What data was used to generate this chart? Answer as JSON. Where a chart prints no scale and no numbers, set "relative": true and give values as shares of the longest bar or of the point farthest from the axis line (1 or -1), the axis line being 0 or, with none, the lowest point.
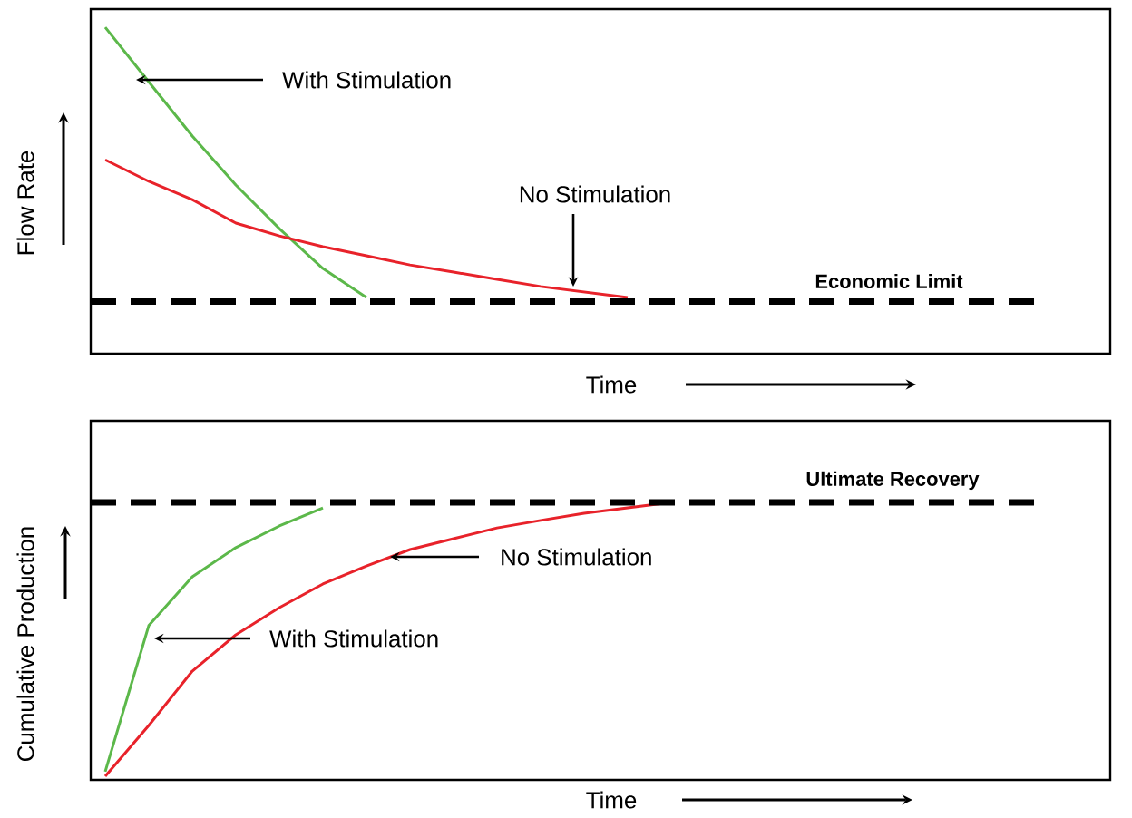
{
  "chart_data": [
    {
      "type": "line",
      "relative": true,
      "xlabel": "Time",
      "ylabel": "Flow Rate",
      "categories": [
        null,
        null,
        null,
        null,
        null,
        null,
        null,
        null,
        null,
        null,
        null,
        null,
        null,
        null,
        null,
        null,
        null,
        null,
        null,
        null,
        null,
        null,
        null
      ],
      "series": [
        {
          "color": "#5cb84a",
          "values": [
            1,
            0.833,
            0.667,
            0.517,
            0.383,
            0.261,
            0.172,
            null,
            null,
            null,
            null,
            null,
            null,
            null,
            null,
            null,
            null,
            null,
            null,
            null,
            null,
            null,
            null
          ]
        },
        {
          "color": "#e8222a",
          "values": [
            0.594,
            0.528,
            0.472,
            0.4,
            0.361,
            0.328,
            0.3,
            0.272,
            0.25,
            0.228,
            0.206,
            0.189,
            0.172,
            null,
            null,
            null,
            null,
            null,
            null,
            null,
            null,
            null,
            null
          ]
        }
      ],
      "ref_lines": [
        {
          "axis": "y",
          "value": 0.16,
          "label": "Economic Limit",
          "color": "#000000",
          "line_style": "dashed"
        }
      ],
      "annotations": [
        "With Stimulation",
        "No Stimulation"
      ]
    },
    {
      "type": "line",
      "relative": true,
      "xlabel": "Time",
      "ylabel": "Cumulative Production",
      "categories": [
        null,
        null,
        null,
        null,
        null,
        null,
        null,
        null,
        null,
        null,
        null,
        null,
        null,
        null,
        null,
        null,
        null,
        null,
        null,
        null,
        null,
        null,
        null
      ],
      "series": [
        {
          "color": "#5cb84a",
          "values": [
            0.03,
            0.556,
            0.732,
            0.837,
            0.915,
            0.98,
            null,
            null,
            null,
            null,
            null,
            null,
            null,
            null,
            null,
            null,
            null,
            null,
            null,
            null,
            null,
            null,
            null
          ]
        },
        {
          "color": "#e8222a",
          "values": [
            0.013,
            0.196,
            0.392,
            0.523,
            0.621,
            0.706,
            0.771,
            0.83,
            0.869,
            0.908,
            0.935,
            0.961,
            0.98,
            1,
            null,
            null,
            null,
            null,
            null,
            null,
            null,
            null,
            null
          ]
        }
      ],
      "ref_lines": [
        {
          "axis": "y",
          "value": 1,
          "label": "Ultimate Recovery",
          "color": "#000000",
          "line_style": "dashed"
        }
      ],
      "annotations": [
        "No Stimulation",
        "With Stimulation"
      ]
    }
  ]
}
